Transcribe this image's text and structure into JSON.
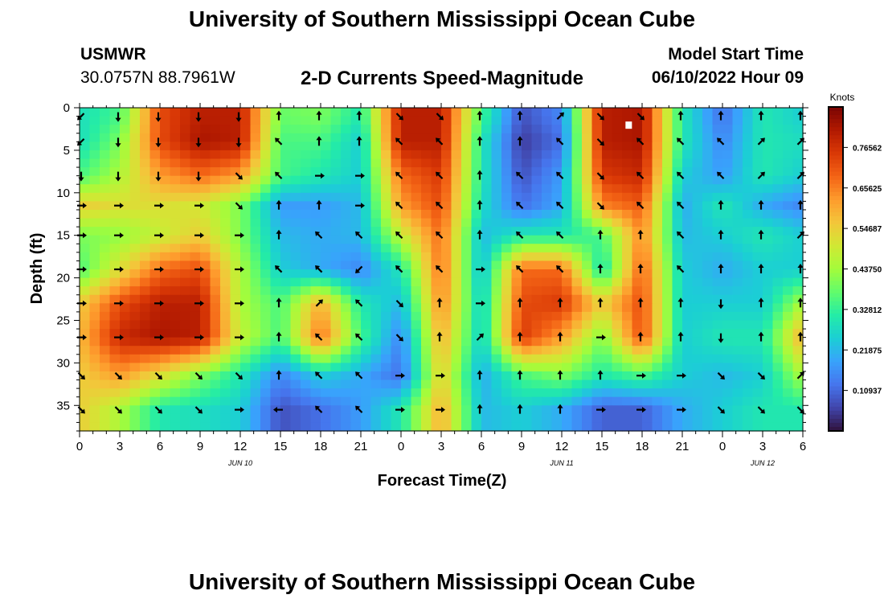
{
  "header": {
    "title": "University of Southern Mississippi Ocean Cube",
    "station": "USMWR",
    "coords": "30.0757N  88.7961W",
    "subtitle": "2-D Currents Speed-Magnitude",
    "model_start_label": "Model Start Time",
    "model_start_value": "06/10/2022 Hour 09"
  },
  "footer": {
    "title_repeat": "University of Southern Mississippi Ocean Cube"
  },
  "chart_data": {
    "type": "heatmap",
    "xlabel": "Forecast Time(Z)",
    "ylabel": "Depth (ft)",
    "x_tick_labels": [
      "0",
      "3",
      "6",
      "9",
      "12",
      "15",
      "18",
      "21",
      "0",
      "3",
      "6",
      "9",
      "12",
      "15",
      "18",
      "21",
      "0",
      "3",
      "6"
    ],
    "x_hours": [
      0,
      3,
      6,
      9,
      12,
      15,
      18,
      21,
      24,
      27,
      30,
      33,
      36,
      39,
      42,
      45,
      48,
      51,
      54
    ],
    "xlim": [
      0,
      54
    ],
    "date_labels": [
      {
        "hour": 12,
        "text": "JUN 10"
      },
      {
        "hour": 36,
        "text": "JUN 11"
      },
      {
        "hour": 51,
        "text": "JUN 12"
      }
    ],
    "y_ticks": [
      0,
      5,
      10,
      15,
      20,
      25,
      30,
      35
    ],
    "ylim": [
      0,
      38
    ],
    "y_inverted": true,
    "colorbar": {
      "label": "Knots",
      "tick_labels": [
        "0.76562",
        "0.65625",
        "0.54687",
        "0.43750",
        "0.32812",
        "0.21875",
        "0.10937"
      ],
      "tick_values": [
        0.76562,
        0.65625,
        0.54687,
        0.4375,
        0.32812,
        0.21875,
        0.10937
      ],
      "range": [
        0,
        0.875
      ],
      "colors": [
        "#30123b",
        "#4145ab",
        "#4675ed",
        "#39a2fc",
        "#1bcfd4",
        "#24eca6",
        "#61fc6c",
        "#a4fc3b",
        "#d1e834",
        "#f3c63a",
        "#fe9b2d",
        "#f36315",
        "#d93806",
        "#b11901",
        "#7a0403"
      ]
    },
    "depths": [
      1,
      4,
      8,
      11.5,
      15,
      19,
      23,
      27,
      31.5,
      35.5
    ],
    "hours": [
      0,
      3,
      6,
      9,
      12,
      15,
      18,
      21,
      24,
      27,
      30,
      33,
      36,
      39,
      42,
      45,
      48,
      51,
      54
    ],
    "speed_knots": [
      [
        0.28,
        0.35,
        0.72,
        0.8,
        0.8,
        0.38,
        0.4,
        0.3,
        0.8,
        0.8,
        0.35,
        0.08,
        0.15,
        0.8,
        0.82,
        0.3,
        0.12,
        0.3,
        0.25
      ],
      [
        0.28,
        0.4,
        0.72,
        0.82,
        0.8,
        0.35,
        0.35,
        0.25,
        0.8,
        0.8,
        0.3,
        0.05,
        0.12,
        0.8,
        0.82,
        0.3,
        0.15,
        0.3,
        0.28
      ],
      [
        0.35,
        0.45,
        0.62,
        0.68,
        0.62,
        0.35,
        0.3,
        0.25,
        0.68,
        0.75,
        0.3,
        0.08,
        0.18,
        0.75,
        0.78,
        0.25,
        0.18,
        0.3,
        0.25
      ],
      [
        0.55,
        0.52,
        0.52,
        0.5,
        0.4,
        0.18,
        0.18,
        0.22,
        0.62,
        0.72,
        0.28,
        0.12,
        0.2,
        0.65,
        0.7,
        0.2,
        0.3,
        0.2,
        0.15
      ],
      [
        0.4,
        0.42,
        0.48,
        0.55,
        0.4,
        0.22,
        0.2,
        0.22,
        0.48,
        0.68,
        0.22,
        0.3,
        0.3,
        0.35,
        0.65,
        0.22,
        0.25,
        0.3,
        0.25
      ],
      [
        0.35,
        0.52,
        0.68,
        0.72,
        0.45,
        0.25,
        0.2,
        0.15,
        0.3,
        0.68,
        0.22,
        0.68,
        0.68,
        0.28,
        0.7,
        0.25,
        0.2,
        0.25,
        0.25
      ],
      [
        0.55,
        0.72,
        0.8,
        0.8,
        0.45,
        0.35,
        0.6,
        0.3,
        0.22,
        0.65,
        0.25,
        0.72,
        0.75,
        0.55,
        0.72,
        0.25,
        0.25,
        0.25,
        0.45
      ],
      [
        0.58,
        0.78,
        0.82,
        0.8,
        0.48,
        0.35,
        0.68,
        0.35,
        0.15,
        0.6,
        0.25,
        0.75,
        0.62,
        0.4,
        0.72,
        0.25,
        0.3,
        0.3,
        0.6
      ],
      [
        0.55,
        0.62,
        0.52,
        0.4,
        0.3,
        0.15,
        0.25,
        0.2,
        0.12,
        0.55,
        0.2,
        0.35,
        0.4,
        0.3,
        0.35,
        0.25,
        0.22,
        0.25,
        0.45
      ],
      [
        0.55,
        0.45,
        0.3,
        0.28,
        0.25,
        0.08,
        0.12,
        0.18,
        0.3,
        0.6,
        0.22,
        0.25,
        0.2,
        0.1,
        0.1,
        0.2,
        0.25,
        0.3,
        0.3
      ]
    ],
    "arrow_direction_deg": [
      [
        225,
        270,
        270,
        270,
        270,
        90,
        90,
        90,
        315,
        315,
        90,
        90,
        45,
        315,
        315,
        90,
        90,
        90,
        90
      ],
      [
        225,
        270,
        270,
        270,
        270,
        135,
        90,
        90,
        135,
        135,
        90,
        90,
        135,
        315,
        135,
        135,
        135,
        45,
        45
      ],
      [
        270,
        270,
        270,
        270,
        315,
        135,
        0,
        0,
        135,
        135,
        90,
        135,
        135,
        315,
        135,
        135,
        135,
        45,
        45
      ],
      [
        0,
        0,
        0,
        0,
        315,
        90,
        90,
        0,
        135,
        135,
        90,
        135,
        135,
        315,
        135,
        135,
        90,
        90,
        90
      ],
      [
        0,
        0,
        0,
        0,
        0,
        90,
        135,
        135,
        135,
        135,
        90,
        135,
        135,
        90,
        90,
        135,
        90,
        90,
        45
      ],
      [
        0,
        0,
        0,
        0,
        0,
        135,
        135,
        225,
        135,
        135,
        0,
        135,
        135,
        90,
        90,
        135,
        90,
        90,
        90
      ],
      [
        0,
        0,
        0,
        0,
        0,
        90,
        45,
        135,
        315,
        90,
        0,
        90,
        90,
        90,
        90,
        90,
        270,
        90,
        90
      ],
      [
        0,
        0,
        0,
        0,
        0,
        90,
        135,
        135,
        315,
        90,
        45,
        90,
        90,
        0,
        90,
        90,
        270,
        90,
        90
      ],
      [
        315,
        315,
        315,
        315,
        315,
        90,
        135,
        135,
        0,
        0,
        90,
        90,
        90,
        90,
        0,
        0,
        315,
        315,
        45
      ],
      [
        315,
        315,
        315,
        315,
        0,
        180,
        135,
        135,
        0,
        0,
        90,
        90,
        90,
        0,
        0,
        0,
        315,
        315,
        315
      ]
    ],
    "marker": {
      "hour": 41,
      "depth": 2
    }
  }
}
